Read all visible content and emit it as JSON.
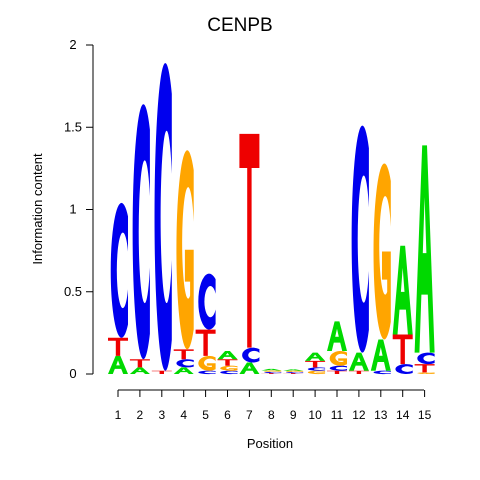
{
  "chart_data": {
    "type": "sequence-logo",
    "title": "CENPB",
    "xlabel": "Position",
    "ylabel": "Information content",
    "ylim": [
      0,
      2
    ],
    "y_ticks": [
      "0",
      "0.5",
      "1",
      "1.5",
      "2"
    ],
    "y_tick_values": [
      0,
      0.5,
      1,
      1.5,
      2
    ],
    "x_ticks": [
      "1",
      "2",
      "3",
      "4",
      "5",
      "6",
      "7",
      "8",
      "9",
      "10",
      "11",
      "12",
      "13",
      "14",
      "15"
    ],
    "colors": {
      "A": "#00d900",
      "C": "#0000ee",
      "G": "#ffa500",
      "T": "#ee0000"
    },
    "positions": [
      {
        "pos": 1,
        "stack": [
          [
            "A",
            0.11
          ],
          [
            "T",
            0.11
          ],
          [
            "C",
            0.82
          ]
        ]
      },
      {
        "pos": 2,
        "stack": [
          [
            "A",
            0.04
          ],
          [
            "T",
            0.05
          ],
          [
            "C",
            1.55
          ]
        ]
      },
      {
        "pos": 3,
        "stack": [
          [
            "T",
            0.02
          ],
          [
            "C",
            1.87
          ]
        ]
      },
      {
        "pos": 4,
        "stack": [
          [
            "A",
            0.04
          ],
          [
            "C",
            0.05
          ],
          [
            "T",
            0.06
          ],
          [
            "G",
            1.21
          ]
        ]
      },
      {
        "pos": 5,
        "stack": [
          [
            "C",
            0.02
          ],
          [
            "G",
            0.09
          ],
          [
            "T",
            0.16
          ],
          [
            "C",
            0.34
          ]
        ]
      },
      {
        "pos": 6,
        "stack": [
          [
            "C",
            0.02
          ],
          [
            "G",
            0.03
          ],
          [
            "T",
            0.04
          ],
          [
            "A",
            0.05
          ]
        ]
      },
      {
        "pos": 7,
        "stack": [
          [
            "A",
            0.07
          ],
          [
            "C",
            0.09
          ],
          [
            "T",
            1.3
          ]
        ]
      },
      {
        "pos": 8,
        "stack": [
          [
            "T",
            0.005
          ],
          [
            "C",
            0.008
          ],
          [
            "G",
            0.008
          ],
          [
            "A",
            0.01
          ]
        ]
      },
      {
        "pos": 9,
        "stack": [
          [
            "T",
            0.005
          ],
          [
            "C",
            0.007
          ],
          [
            "G",
            0.008
          ],
          [
            "A",
            0.008
          ]
        ]
      },
      {
        "pos": 10,
        "stack": [
          [
            "G",
            0.02
          ],
          [
            "C",
            0.02
          ],
          [
            "T",
            0.04
          ],
          [
            "A",
            0.05
          ]
        ]
      },
      {
        "pos": 11,
        "stack": [
          [
            "T",
            0.02
          ],
          [
            "C",
            0.03
          ],
          [
            "G",
            0.09
          ],
          [
            "A",
            0.18
          ]
        ]
      },
      {
        "pos": 12,
        "stack": [
          [
            "T",
            0.02
          ],
          [
            "A",
            0.11
          ],
          [
            "C",
            1.38
          ]
        ]
      },
      {
        "pos": 13,
        "stack": [
          [
            "C",
            0.02
          ],
          [
            "A",
            0.19
          ],
          [
            "G",
            1.07
          ]
        ]
      },
      {
        "pos": 14,
        "stack": [
          [
            "C",
            0.06
          ],
          [
            "T",
            0.18
          ],
          [
            "A",
            0.54
          ]
        ]
      },
      {
        "pos": 15,
        "stack": [
          [
            "G",
            0.01
          ],
          [
            "T",
            0.05
          ],
          [
            "C",
            0.07
          ],
          [
            "A",
            1.26
          ]
        ]
      }
    ]
  }
}
